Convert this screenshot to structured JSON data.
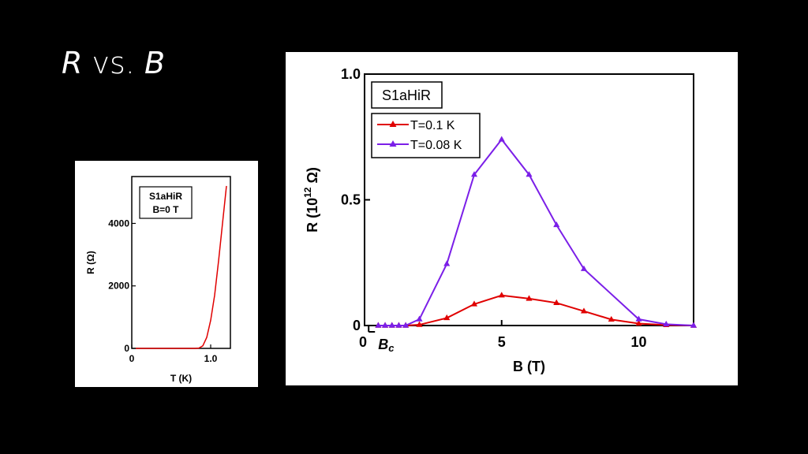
{
  "slide": {
    "title_r": "R",
    "title_vs": " vs. ",
    "title_b": "B"
  },
  "chart_data": [
    {
      "type": "line",
      "annotation_lines": [
        "S1aHiR",
        "B=0 T"
      ],
      "xlabel": "T (K)",
      "ylabel": "R (Ω)",
      "xlim": [
        0,
        1.25
      ],
      "ylim": [
        0,
        5500
      ],
      "x_ticks": [
        {
          "value": 0,
          "label": "0"
        },
        {
          "value": 1.0,
          "label": "1.0"
        }
      ],
      "y_ticks": [
        {
          "value": 0,
          "label": "0"
        },
        {
          "value": 2000,
          "label": "2000"
        },
        {
          "value": 4000,
          "label": "4000"
        }
      ],
      "series": [
        {
          "color": "#e00000",
          "x": [
            0.05,
            0.6,
            0.8,
            0.85,
            0.9,
            0.95,
            1.0,
            1.05,
            1.1,
            1.15,
            1.2
          ],
          "y": [
            0,
            0,
            0,
            10,
            80,
            350,
            900,
            1700,
            2800,
            4000,
            5200
          ]
        }
      ],
      "grid": false
    },
    {
      "type": "line",
      "annotation": "S1aHiR",
      "xlabel": "B (T)",
      "ylabel_main": "R (10",
      "ylabel_sup": "12",
      "ylabel_end": " Ω)",
      "xlim": [
        0,
        12
      ],
      "ylim": [
        0,
        1.0
      ],
      "x_ticks": [
        {
          "value": 0,
          "label": "0"
        },
        {
          "value": 5,
          "label": "5"
        },
        {
          "value": 10,
          "label": "10"
        }
      ],
      "y_ticks": [
        {
          "value": 0,
          "label": "0"
        },
        {
          "value": 0.5,
          "label": "0.5"
        },
        {
          "value": 1.0,
          "label": "1.0"
        }
      ],
      "bc_label": "B",
      "bc_sub": "c",
      "bc_value": 0.15,
      "legend_position": "top-left",
      "series": [
        {
          "name": "T=0.1 K",
          "color": "#e00000",
          "x": [
            0.5,
            0.75,
            1.0,
            1.25,
            1.5,
            2.0,
            3.0,
            4.0,
            5.0,
            6.0,
            7.0,
            8.0,
            9.0,
            10.0,
            11.0,
            12.0
          ],
          "y": [
            0,
            0,
            0,
            0,
            0,
            0.003,
            0.03,
            0.085,
            0.12,
            0.107,
            0.09,
            0.057,
            0.024,
            0.008,
            0.002,
            0
          ]
        },
        {
          "name": "T=0.08 K",
          "color": "#7b1fe8",
          "x": [
            0.5,
            0.75,
            1.0,
            1.25,
            1.5,
            2.0,
            3.0,
            4.0,
            5.0,
            6.0,
            7.0,
            8.0,
            10.0,
            11.0,
            12.0
          ],
          "y": [
            0,
            0,
            0,
            0,
            0,
            0.025,
            0.245,
            0.6,
            0.74,
            0.6,
            0.4,
            0.225,
            0.025,
            0.005,
            0
          ]
        }
      ],
      "grid": false
    }
  ]
}
